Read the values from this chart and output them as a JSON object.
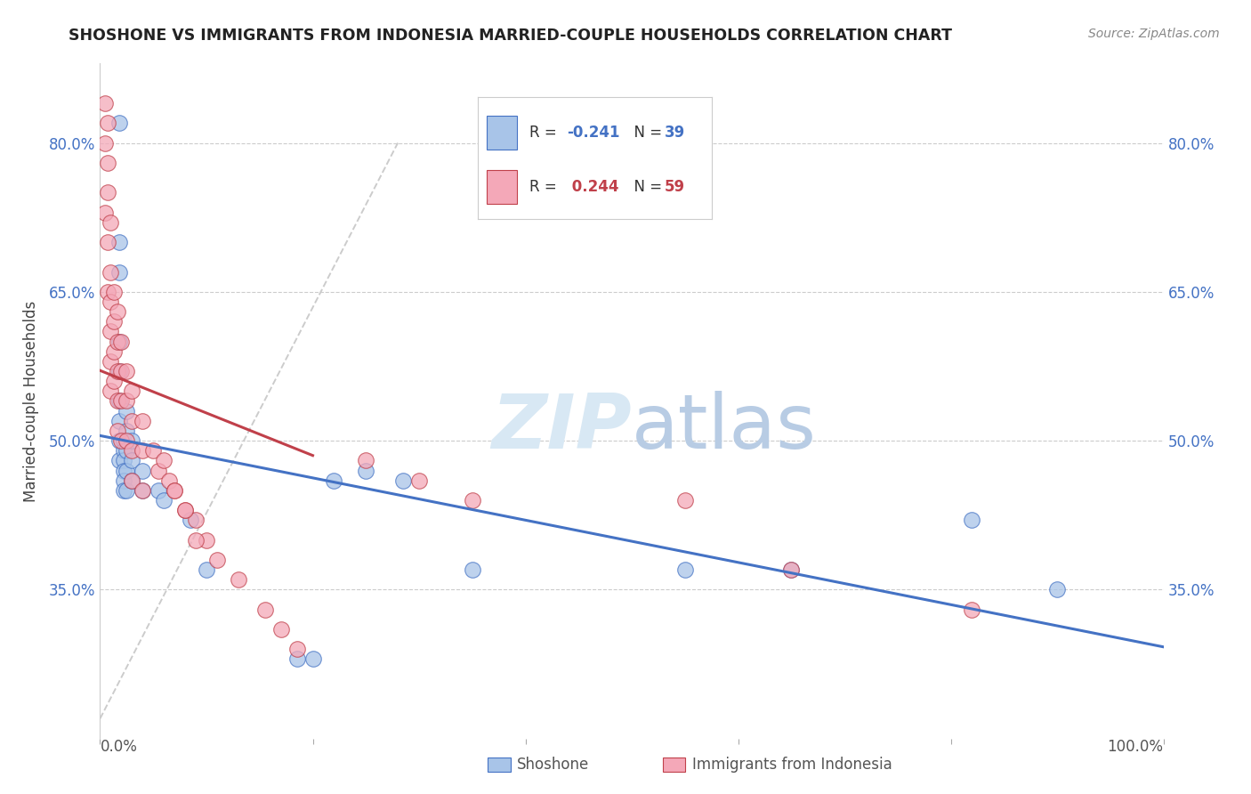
{
  "title": "SHOSHONE VS IMMIGRANTS FROM INDONESIA MARRIED-COUPLE HOUSEHOLDS CORRELATION CHART",
  "source": "Source: ZipAtlas.com",
  "ylabel": "Married-couple Households",
  "y_ticks": [
    0.35,
    0.5,
    0.65,
    0.8
  ],
  "y_tick_labels": [
    "35.0%",
    "50.0%",
    "65.0%",
    "80.0%"
  ],
  "xlim": [
    0.0,
    1.0
  ],
  "ylim": [
    0.2,
    0.88
  ],
  "shoshone_color": "#a8c4e8",
  "indonesia_color": "#f4a8b8",
  "trend_shoshone_color": "#4472c4",
  "trend_indonesia_color": "#c0404a",
  "watermark_color": "#d8e8f4",
  "background_color": "#ffffff",
  "grid_color": "#cccccc",
  "shoshone_x": [
    0.018,
    0.018,
    0.018,
    0.018,
    0.018,
    0.018,
    0.018,
    0.018,
    0.018,
    0.022,
    0.022,
    0.022,
    0.022,
    0.022,
    0.022,
    0.025,
    0.025,
    0.025,
    0.025,
    0.025,
    0.03,
    0.03,
    0.03,
    0.04,
    0.04,
    0.055,
    0.06,
    0.085,
    0.1,
    0.185,
    0.2,
    0.22,
    0.25,
    0.285,
    0.35,
    0.55,
    0.65,
    0.82,
    0.9
  ],
  "shoshone_y": [
    0.82,
    0.7,
    0.67,
    0.6,
    0.57,
    0.54,
    0.52,
    0.5,
    0.48,
    0.5,
    0.49,
    0.48,
    0.47,
    0.46,
    0.45,
    0.53,
    0.51,
    0.49,
    0.47,
    0.45,
    0.5,
    0.48,
    0.46,
    0.47,
    0.45,
    0.45,
    0.44,
    0.42,
    0.37,
    0.28,
    0.28,
    0.46,
    0.47,
    0.46,
    0.37,
    0.37,
    0.37,
    0.42,
    0.35
  ],
  "indonesia_x": [
    0.005,
    0.005,
    0.005,
    0.007,
    0.007,
    0.007,
    0.007,
    0.007,
    0.01,
    0.01,
    0.01,
    0.01,
    0.01,
    0.01,
    0.013,
    0.013,
    0.013,
    0.013,
    0.016,
    0.016,
    0.016,
    0.016,
    0.016,
    0.02,
    0.02,
    0.02,
    0.02,
    0.025,
    0.025,
    0.025,
    0.03,
    0.03,
    0.03,
    0.03,
    0.04,
    0.04,
    0.04,
    0.05,
    0.055,
    0.065,
    0.07,
    0.08,
    0.09,
    0.1,
    0.11,
    0.13,
    0.155,
    0.17,
    0.185,
    0.55,
    0.65,
    0.82,
    0.25,
    0.3,
    0.35,
    0.06,
    0.07,
    0.08,
    0.09
  ],
  "indonesia_y": [
    0.84,
    0.8,
    0.73,
    0.82,
    0.78,
    0.75,
    0.7,
    0.65,
    0.72,
    0.67,
    0.64,
    0.61,
    0.58,
    0.55,
    0.65,
    0.62,
    0.59,
    0.56,
    0.63,
    0.6,
    0.57,
    0.54,
    0.51,
    0.6,
    0.57,
    0.54,
    0.5,
    0.57,
    0.54,
    0.5,
    0.55,
    0.52,
    0.49,
    0.46,
    0.52,
    0.49,
    0.45,
    0.49,
    0.47,
    0.46,
    0.45,
    0.43,
    0.42,
    0.4,
    0.38,
    0.36,
    0.33,
    0.31,
    0.29,
    0.44,
    0.37,
    0.33,
    0.48,
    0.46,
    0.44,
    0.48,
    0.45,
    0.43,
    0.4
  ],
  "dpi": 100
}
